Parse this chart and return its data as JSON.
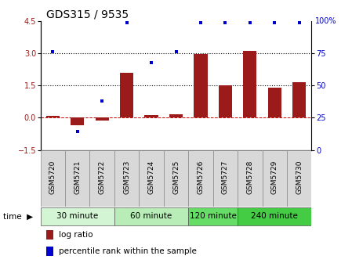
{
  "title": "GDS315 / 9535",
  "samples": [
    "GSM5720",
    "GSM5721",
    "GSM5722",
    "GSM5723",
    "GSM5724",
    "GSM5725",
    "GSM5726",
    "GSM5727",
    "GSM5728",
    "GSM5729",
    "GSM5730"
  ],
  "log_ratio": [
    0.1,
    -0.35,
    -0.15,
    2.1,
    0.12,
    0.15,
    2.95,
    1.5,
    3.1,
    1.4,
    1.65
  ],
  "percentile": [
    76,
    14,
    38,
    99,
    68,
    76,
    99,
    99,
    99,
    99,
    99
  ],
  "groups": [
    {
      "label": "30 minute",
      "start": 0,
      "end": 3,
      "color": "#d4f5d4"
    },
    {
      "label": "60 minute",
      "start": 3,
      "end": 6,
      "color": "#b8edb8"
    },
    {
      "label": "120 minute",
      "start": 6,
      "end": 8,
      "color": "#66dd66"
    },
    {
      "label": "240 minute",
      "start": 8,
      "end": 11,
      "color": "#44cc44"
    }
  ],
  "left_ylim": [
    -1.5,
    4.5
  ],
  "right_ylim": [
    0,
    100
  ],
  "left_yticks": [
    -1.5,
    0,
    1.5,
    3,
    4.5
  ],
  "right_ytick_vals": [
    0,
    25,
    50,
    75
  ],
  "right_ytick_labels": [
    "0",
    "25",
    "50",
    "75"
  ],
  "dotted_lines": [
    1.5,
    3.0
  ],
  "bar_color": "#9b1a1a",
  "scatter_color": "#0000cc",
  "zero_line_color": "#cc0000",
  "background_color": "#ffffff",
  "title_fontsize": 10,
  "tick_fontsize": 7,
  "label_fontsize": 6.5,
  "group_fontsize": 7.5,
  "legend_fontsize": 7.5
}
